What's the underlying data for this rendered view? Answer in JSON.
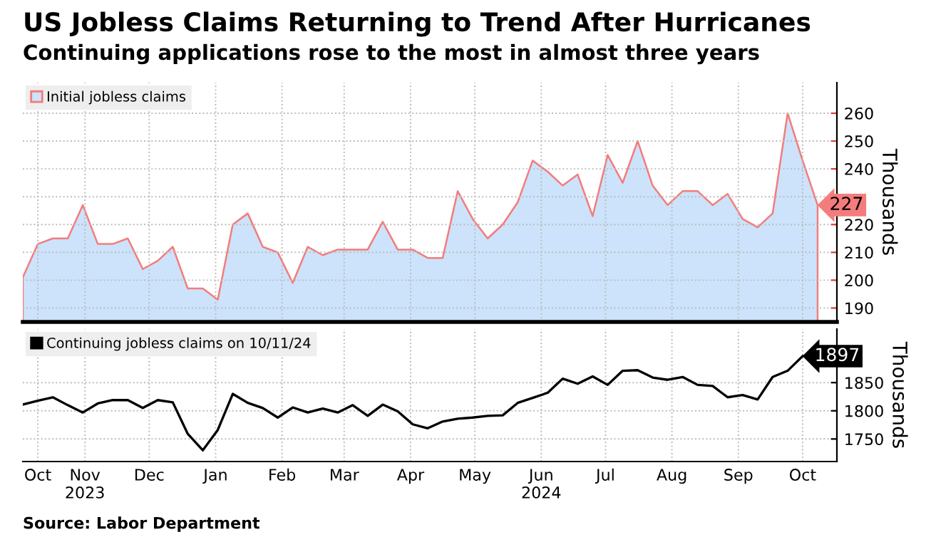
{
  "chart_data": [
    {
      "type": "area",
      "title": "US Jobless Claims Returning to Trend After Hurricanes",
      "subtitle": "Continuing applications rose to the most in almost three years",
      "ylabel": "Thousands",
      "x": [
        "2023-10-07",
        "2023-10-14",
        "2023-10-21",
        "2023-10-28",
        "2023-11-04",
        "2023-11-11",
        "2023-11-18",
        "2023-11-25",
        "2023-12-02",
        "2023-12-09",
        "2023-12-16",
        "2023-12-23",
        "2023-12-30",
        "2024-01-06",
        "2024-01-13",
        "2024-01-20",
        "2024-01-27",
        "2024-02-03",
        "2024-02-10",
        "2024-02-17",
        "2024-02-24",
        "2024-03-02",
        "2024-03-09",
        "2024-03-16",
        "2024-03-23",
        "2024-03-30",
        "2024-04-06",
        "2024-04-13",
        "2024-04-20",
        "2024-04-27",
        "2024-05-04",
        "2024-05-11",
        "2024-05-18",
        "2024-05-25",
        "2024-06-01",
        "2024-06-08",
        "2024-06-15",
        "2024-06-22",
        "2024-06-29",
        "2024-07-06",
        "2024-07-13",
        "2024-07-20",
        "2024-07-27",
        "2024-08-03",
        "2024-08-10",
        "2024-08-17",
        "2024-08-24",
        "2024-08-31",
        "2024-09-07",
        "2024-09-14",
        "2024-09-21",
        "2024-09-28",
        "2024-10-05",
        "2024-10-12"
      ],
      "series": [
        {
          "name": "Initial jobless claims",
          "color": "#cce3fb",
          "values": [
            201,
            213,
            215,
            215,
            227,
            213,
            213,
            215,
            204,
            207,
            212,
            197,
            197,
            193,
            220,
            224,
            212,
            210,
            199,
            212,
            209,
            211,
            211,
            211,
            221,
            211,
            211,
            208,
            208,
            232,
            222,
            215,
            220,
            228,
            243,
            239,
            234,
            238,
            223,
            245,
            235,
            250,
            234,
            227,
            232,
            232,
            227,
            231,
            222,
            219,
            224,
            260,
            243,
            227
          ],
          "value_labels": [
            null,
            null,
            null,
            null,
            null,
            null,
            null,
            null,
            null,
            null,
            null,
            null,
            null,
            null,
            null,
            null,
            null,
            null,
            null,
            null,
            null,
            null,
            null,
            null,
            null,
            null,
            null,
            null,
            null,
            null,
            null,
            null,
            null,
            null,
            null,
            null,
            null,
            null,
            null,
            null,
            null,
            null,
            null,
            null,
            null,
            null,
            null,
            null,
            null,
            null,
            null,
            null,
            null,
            "227"
          ]
        }
      ],
      "xlim": [
        "2023-10-07",
        "2024-10-21"
      ],
      "xticks": [
        {
          "value": "2023-10-14",
          "label": null
        },
        {
          "value": "2023-11-05",
          "label": null
        },
        {
          "value": "2023-12-05",
          "label": null
        },
        {
          "value": "2024-01-05",
          "label": null
        },
        {
          "value": "2024-02-05",
          "label": null
        },
        {
          "value": "2024-03-05",
          "label": null
        },
        {
          "value": "2024-04-05",
          "label": null
        },
        {
          "value": "2024-05-05",
          "label": null
        },
        {
          "value": "2024-06-05",
          "label": null
        },
        {
          "value": "2024-07-05",
          "label": null
        },
        {
          "value": "2024-08-05",
          "label": null
        },
        {
          "value": "2024-09-05",
          "label": null
        },
        {
          "value": "2024-10-05",
          "label": null
        }
      ],
      "ylim": [
        185,
        271
      ],
      "yticks": [
        190,
        200,
        210,
        220,
        {
          "value": 230,
          "label": null
        },
        240,
        250,
        260
      ],
      "tick_labels": "y",
      "grid": true,
      "legend": "top left"
    },
    {
      "type": "line",
      "ylabel": "Thousands",
      "x": [
        "2023-10-07",
        "2023-10-14",
        "2023-10-21",
        "2023-10-28",
        "2023-11-04",
        "2023-11-11",
        "2023-11-18",
        "2023-11-25",
        "2023-12-02",
        "2023-12-09",
        "2023-12-16",
        "2023-12-23",
        "2023-12-30",
        "2024-01-06",
        "2024-01-13",
        "2024-01-20",
        "2024-01-27",
        "2024-02-03",
        "2024-02-10",
        "2024-02-17",
        "2024-02-24",
        "2024-03-02",
        "2024-03-09",
        "2024-03-16",
        "2024-03-23",
        "2024-03-30",
        "2024-04-06",
        "2024-04-13",
        "2024-04-20",
        "2024-04-27",
        "2024-05-04",
        "2024-05-11",
        "2024-05-18",
        "2024-05-25",
        "2024-06-01",
        "2024-06-08",
        "2024-06-15",
        "2024-06-22",
        "2024-06-29",
        "2024-07-06",
        "2024-07-13",
        "2024-07-20",
        "2024-07-27",
        "2024-08-03",
        "2024-08-10",
        "2024-08-17",
        "2024-08-24",
        "2024-08-31",
        "2024-09-07",
        "2024-09-14",
        "2024-09-21",
        "2024-09-28",
        "2024-10-05"
      ],
      "series": [
        {
          "name": "Continuing jobless claims on 10/11/24",
          "color": "#000000",
          "value_labels": [
            null,
            null,
            null,
            null,
            null,
            null,
            null,
            null,
            null,
            null,
            null,
            null,
            null,
            null,
            null,
            null,
            null,
            null,
            null,
            null,
            null,
            null,
            null,
            null,
            null,
            null,
            null,
            null,
            null,
            null,
            null,
            null,
            null,
            null,
            null,
            null,
            null,
            null,
            null,
            null,
            null,
            null,
            null,
            null,
            null,
            null,
            null,
            null,
            null,
            null,
            null,
            null,
            "1897"
          ],
          "values": [
            1811,
            1818,
            1824,
            1810,
            1797,
            1813,
            1819,
            1819,
            1805,
            1819,
            1815,
            1759,
            1730,
            1766,
            1830,
            1814,
            1805,
            1788,
            1806,
            1797,
            1804,
            1797,
            1810,
            1791,
            1811,
            1799,
            1776,
            1769,
            1781,
            1786,
            1788,
            1791,
            1792,
            1814,
            1823,
            1832,
            1857,
            1848,
            1861,
            1846,
            1871,
            1872,
            1859,
            1855,
            1860,
            1846,
            1844,
            1824,
            1828,
            1820,
            1860,
            1871,
            1897
          ]
        }
      ],
      "xlim": [
        "2023-10-07",
        "2024-10-21"
      ],
      "xticks": [
        {
          "value": "2023-10-14",
          "label": "Oct"
        },
        {
          "value": "2023-11-05",
          "label": "Nov\n2023"
        },
        {
          "value": "2023-12-05",
          "label": "Dec"
        },
        {
          "value": "2024-01-05",
          "label": "Jan"
        },
        {
          "value": "2024-02-05",
          "label": "Feb"
        },
        {
          "value": "2024-03-05",
          "label": "Mar"
        },
        {
          "value": "2024-04-05",
          "label": "Apr"
        },
        {
          "value": "2024-05-05",
          "label": "May"
        },
        {
          "value": "2024-06-05",
          "label": "Jun\n2024"
        },
        {
          "value": "2024-07-05",
          "label": "Jul"
        },
        {
          "value": "2024-08-05",
          "label": "Aug"
        },
        {
          "value": "2024-09-05",
          "label": "Sep"
        },
        {
          "value": "2024-10-05",
          "label": "Oct"
        }
      ],
      "ylim": [
        1710,
        1945
      ],
      "yticks": [
        1750,
        1800,
        1850
      ],
      "grid": true,
      "legend": "top left",
      "annotations": [
        "Source: Labor Department"
      ]
    }
  ]
}
